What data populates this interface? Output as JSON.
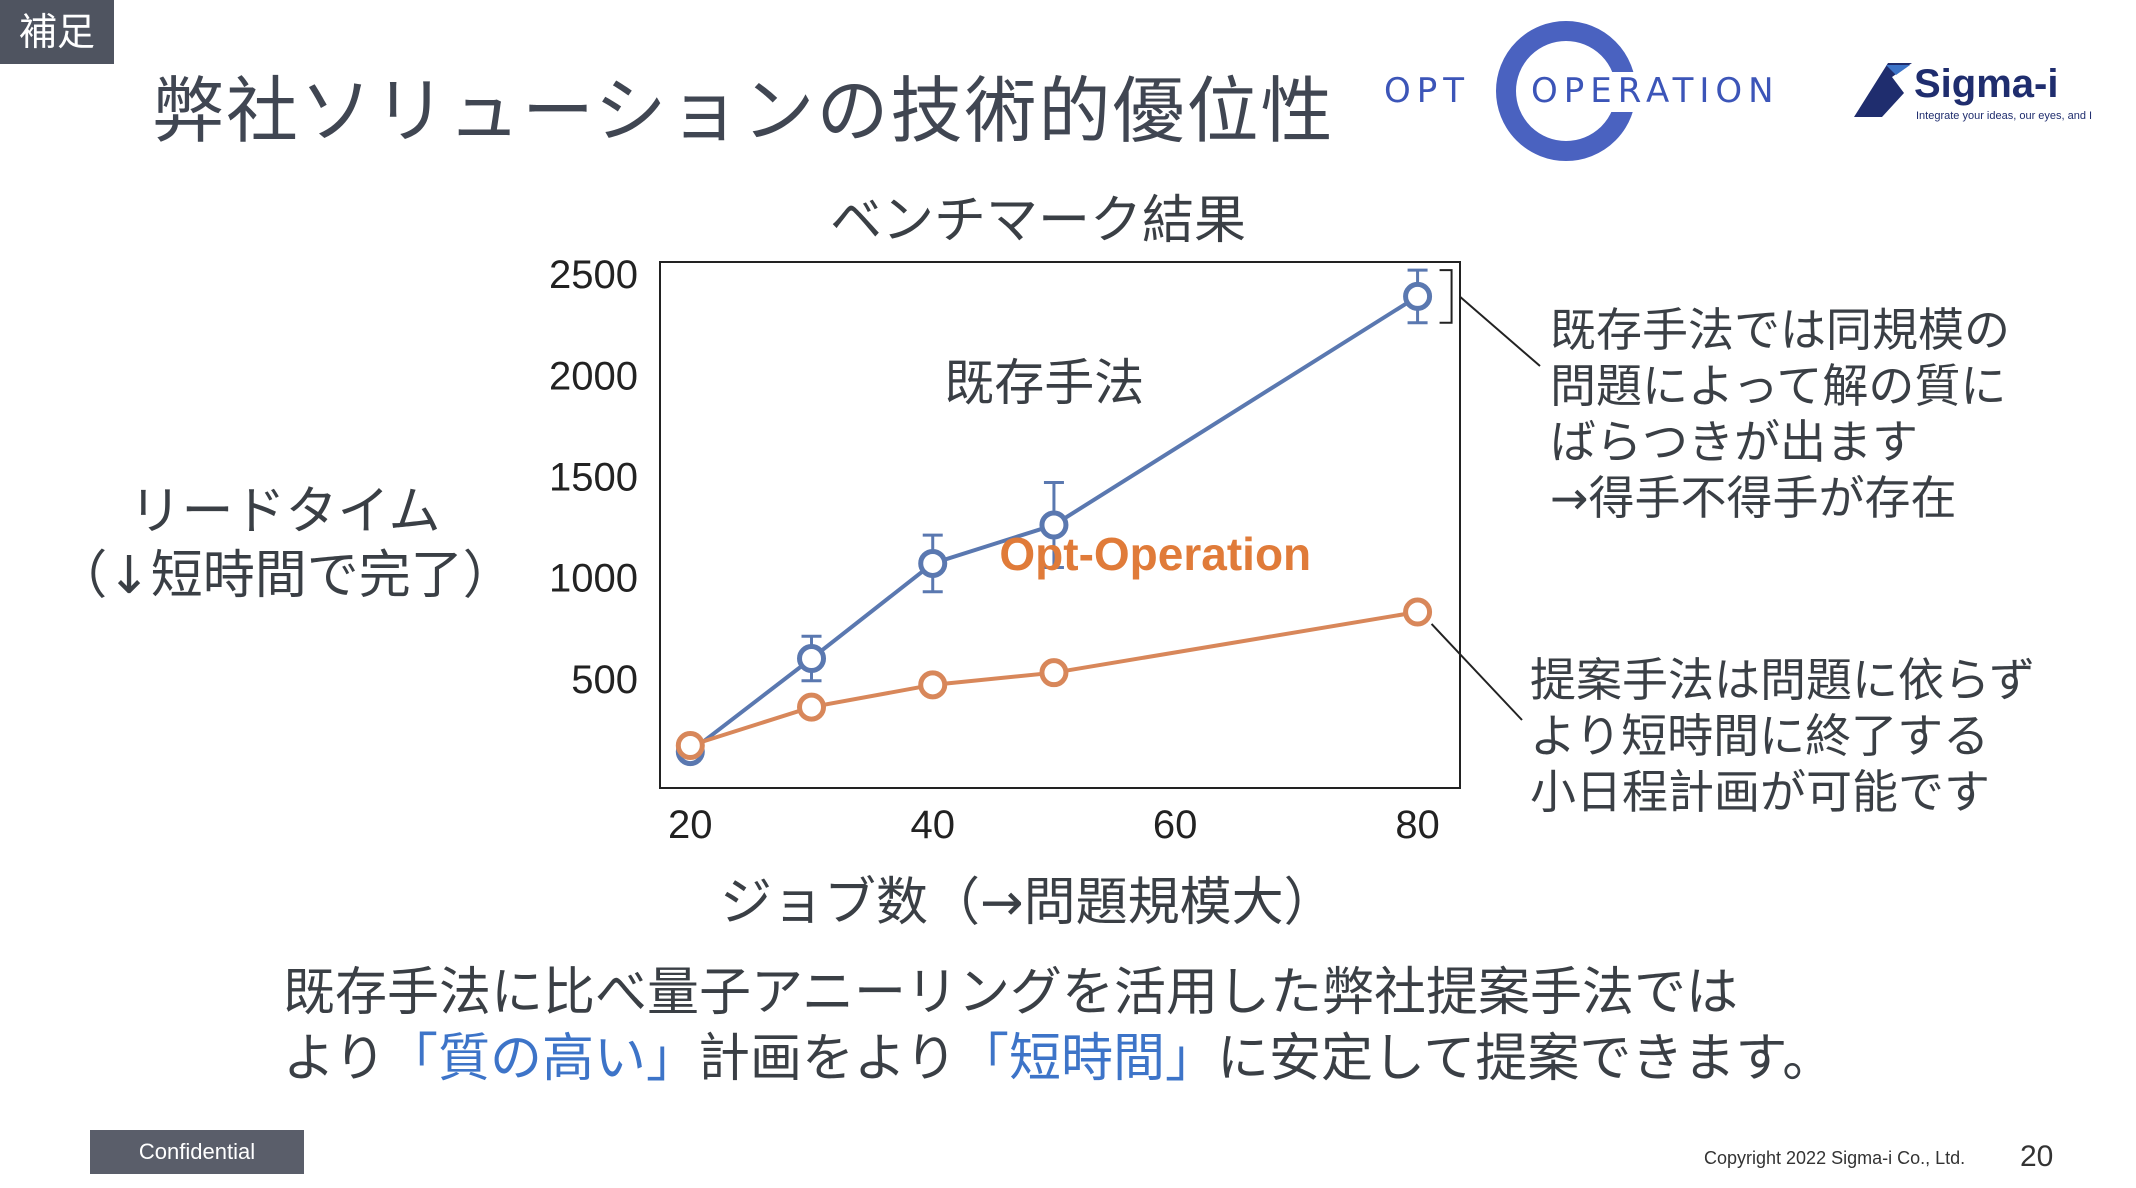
{
  "tag": "補足",
  "title": "弊社ソリューションの技術的優位性",
  "logos": {
    "opt_left": "OPT",
    "opt_right": "OPERATION",
    "sigma_name": "Sigma-i",
    "sigma_tagline": "Integrate your ideas, our eyes, and I"
  },
  "y_axis_label": {
    "line1": "リードタイム",
    "line2": "（↓短時間で完了）"
  },
  "x_axis_label": "ジョブ数（→問題規模大）",
  "chart_data": {
    "type": "line",
    "title": "ベンチマーク結果",
    "x": [
      20,
      30,
      40,
      50,
      80
    ],
    "xlim": [
      17.5,
      83.5
    ],
    "ylim": [
      -40,
      2560
    ],
    "xticks": [
      "20",
      "40",
      "60",
      "80"
    ],
    "yticks": [
      "500",
      "1000",
      "1500",
      "2000",
      "2500"
    ],
    "grid": false,
    "series": [
      {
        "name": "既存手法",
        "color": "#5a78b0",
        "values": [
          140,
          600,
          1070,
          1260,
          2390
        ],
        "error": [
          30,
          110,
          140,
          210,
          130
        ]
      },
      {
        "name": "Opt-Operation",
        "color": "#d8875a",
        "label_color": "#e07b39",
        "values": [
          170,
          360,
          470,
          530,
          830
        ]
      }
    ]
  },
  "notes": {
    "existing": [
      "既存手法では同規模の",
      "問題によって解の質に",
      "ばらつきが出ます",
      "→得手不得手が存在"
    ],
    "proposed": [
      "提案手法は問題に依らず",
      "より短時間に終了する",
      "小日程計画が可能です"
    ]
  },
  "summary": {
    "line1": "既存手法に比べ量子アニーリングを活用した弊社提案手法では",
    "line2_a": "より",
    "line2_hl1": "「質の高い」",
    "line2_b": "計画をより",
    "line2_hl2": "「短時間」",
    "line2_c": "に安定して提案できます。"
  },
  "footer": {
    "confidential": "Confidential",
    "copyright": "Copyright  2022 Sigma-i Co., Ltd.",
    "page": "20"
  }
}
